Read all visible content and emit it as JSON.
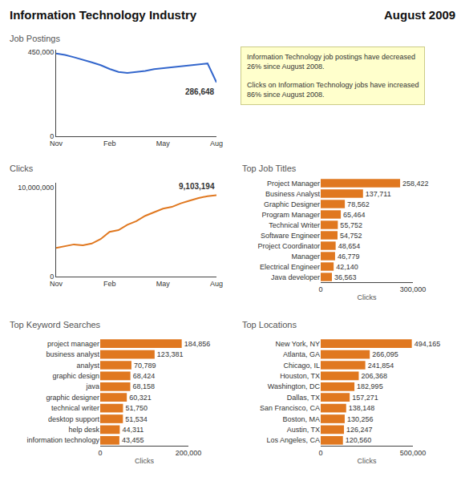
{
  "title": "Information Technology Industry",
  "subtitle": "August 2009",
  "chart_data": [
    {
      "type": "line",
      "title": "Job Postings",
      "categories": [
        "Nov",
        null,
        null,
        null,
        null,
        null,
        "Feb",
        null,
        null,
        null,
        null,
        null,
        "May",
        null,
        null,
        null,
        null,
        null,
        "Aug"
      ],
      "values": [
        440000,
        432000,
        420000,
        408000,
        393000,
        378000,
        358000,
        342000,
        337000,
        342000,
        347000,
        357000,
        362000,
        367000,
        372000,
        377000,
        382000,
        387000,
        286648
      ],
      "color": "#3366cc",
      "ylim": [
        0,
        460000
      ],
      "yticks": [
        0,
        {
          "value": 450000,
          "label": "450,000"
        }
      ],
      "grid": false,
      "annotations": [
        {
          "text": "286,648",
          "x": "Aug",
          "y": 286648
        },
        {
          "text": "Information Technology job postings have decreased\n26% since August 2008.\n\nClicks on Information Technology jobs have increased\n86% since August 2008."
        }
      ]
    },
    {
      "type": "line",
      "title": "Clicks",
      "categories": [
        "Nov",
        null,
        null,
        null,
        null,
        null,
        "Feb",
        null,
        null,
        null,
        null,
        null,
        "May",
        null,
        null,
        null,
        null,
        null,
        "Aug"
      ],
      "values": [
        3200000,
        3400000,
        3600000,
        3500000,
        3700000,
        4200000,
        5000000,
        5200000,
        5800000,
        6200000,
        6800000,
        7200000,
        7600000,
        7800000,
        8200000,
        8500000,
        8800000,
        9000000,
        9103194
      ],
      "color": "#e07820",
      "ylim": [
        0,
        10500000
      ],
      "yticks": [
        0,
        {
          "value": 10000000,
          "label": "10,000,000"
        }
      ],
      "grid": false,
      "annotations": [
        {
          "text": "9,103,194",
          "x": "Aug",
          "y": 9103194
        }
      ]
    },
    {
      "type": "bar",
      "orientation": "horizontal",
      "title": "Top Job Titles",
      "categories": [
        "Project Manager",
        "Business Analyst",
        "Graphic Designer",
        "Program Manager",
        "Technical Writer",
        "Software Engineer",
        "Project Coordinator",
        "Manager",
        "Electrical Engineer",
        "Java developer"
      ],
      "values": [
        258422,
        137711,
        78562,
        65464,
        55752,
        54752,
        48654,
        46779,
        42140,
        36563
      ],
      "value_labels": [
        "258,422",
        "137,711",
        "78,562",
        "65,464",
        "55,752",
        "54,752",
        "48,654",
        "46,779",
        "42,140",
        "36,563"
      ],
      "data_labels": true,
      "color": "#e07820",
      "xlabel": "Clicks",
      "xlim": [
        0,
        300000
      ],
      "xticks": [
        0,
        {
          "value": 300000,
          "label": "300,000"
        }
      ],
      "grid": false
    },
    {
      "type": "bar",
      "orientation": "horizontal",
      "title": "Top Keyword Searches",
      "categories": [
        "project manager",
        "business analyst",
        "analyst",
        "graphic design",
        "java",
        "graphic designer",
        "technical writer",
        "desktop support",
        "help desk",
        "information technology"
      ],
      "values": [
        184856,
        123381,
        70789,
        68424,
        68158,
        60321,
        51750,
        51534,
        44311,
        43455
      ],
      "value_labels": [
        "184,856",
        "123,381",
        "70,789",
        "68,424",
        "68,158",
        "60,321",
        "51,750",
        "51,534",
        "44,311",
        "43,455"
      ],
      "data_labels": true,
      "color": "#e07820",
      "xlabel": "Clicks",
      "xlim": [
        0,
        200000
      ],
      "xticks": [
        0,
        {
          "value": 200000,
          "label": "200,000"
        }
      ],
      "grid": false
    },
    {
      "type": "bar",
      "orientation": "horizontal",
      "title": "Top Locations",
      "categories": [
        "New York, NY",
        "Atlanta, GA",
        "Chicago, IL",
        "Houston, TX",
        "Washington, DC",
        "Dallas, TX",
        "San Francisco, CA",
        "Boston, MA",
        "Austin, TX",
        "Los Angeles, CA"
      ],
      "values": [
        494165,
        266095,
        241854,
        206368,
        182995,
        157271,
        138148,
        130256,
        126247,
        120560
      ],
      "value_labels": [
        "494,165",
        "266,095",
        "241,854",
        "206,368",
        "182,995",
        "157,271",
        "138,148",
        "130,256",
        "126,247",
        "120,560"
      ],
      "data_labels": true,
      "color": "#e07820",
      "xlabel": "Clicks",
      "xlim": [
        0,
        500000
      ],
      "xticks": [
        0,
        {
          "value": 500000,
          "label": "500,000"
        }
      ],
      "grid": false
    }
  ]
}
